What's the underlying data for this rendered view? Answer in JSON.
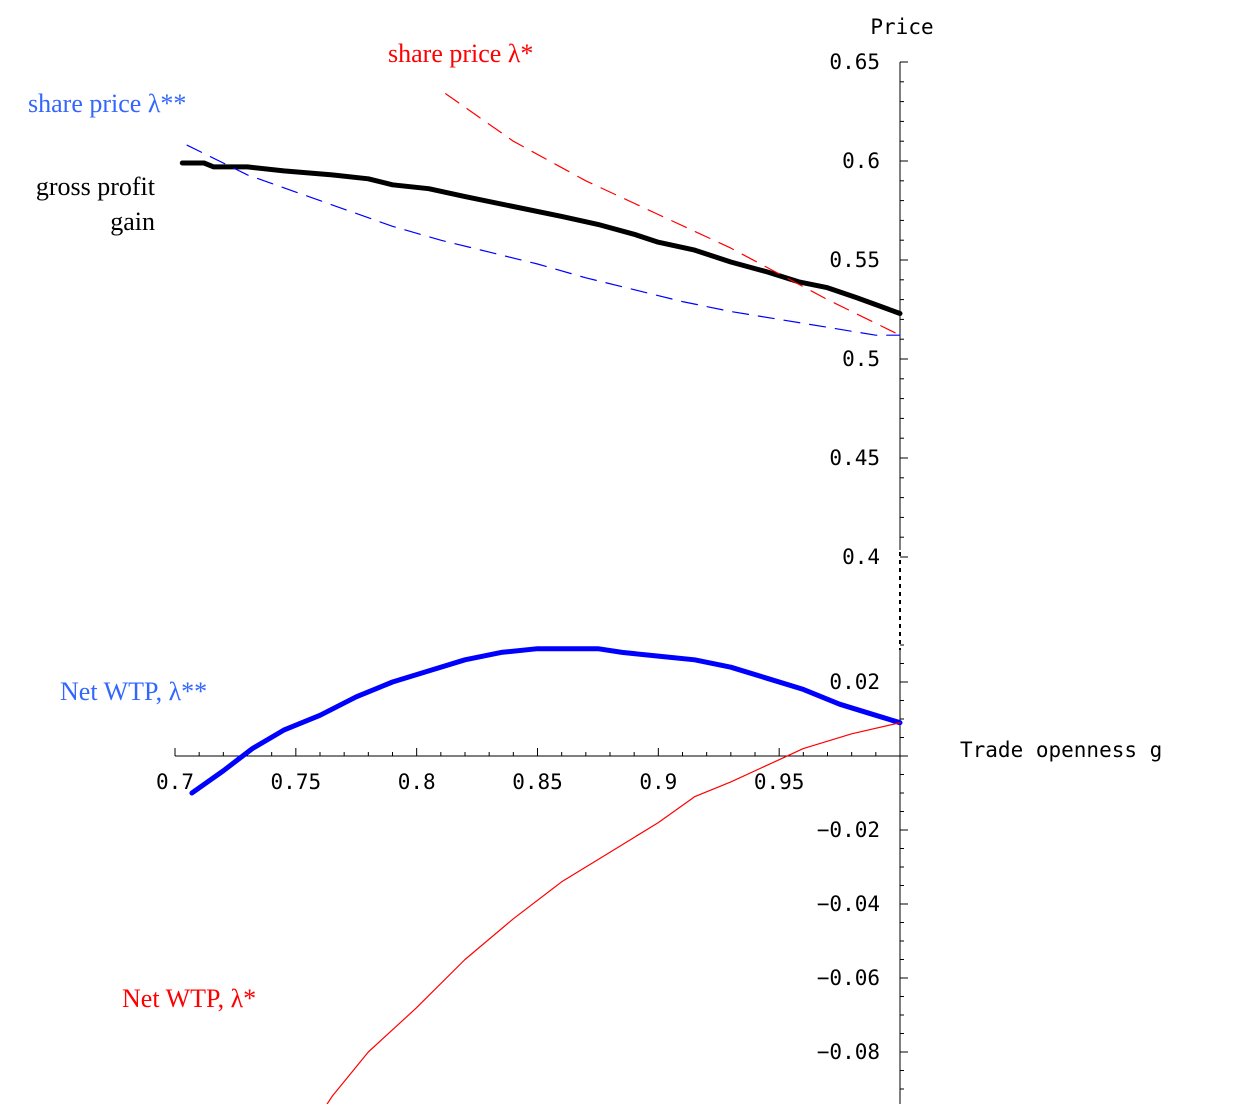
{
  "chart_data": {
    "type": "line",
    "xlabel": "Trade openness g",
    "ylabel": "Price",
    "xlim": [
      0.7,
      1.0
    ],
    "upper_panel": {
      "ylim": [
        0.4,
        0.65
      ],
      "ticks": [
        {
          "value": 0.65,
          "label": "0.65"
        },
        {
          "value": 0.6,
          "label": "0.6"
        },
        {
          "value": 0.55,
          "label": "0.55"
        },
        {
          "value": 0.5,
          "label": "0.5"
        },
        {
          "value": 0.45,
          "label": "0.45"
        },
        {
          "value": 0.4,
          "label": "0.4"
        }
      ]
    },
    "lower_panel": {
      "ylim": [
        -0.1,
        0.03
      ],
      "ticks": [
        {
          "value": 0.02,
          "label": "0.02"
        },
        {
          "value": -0.02,
          "label": "−0.02"
        },
        {
          "value": -0.04,
          "label": "−0.04"
        },
        {
          "value": -0.06,
          "label": "−0.06"
        },
        {
          "value": -0.08,
          "label": "−0.08"
        }
      ]
    },
    "x_ticks": [
      {
        "value": 0.7,
        "label": "0.7"
      },
      {
        "value": 0.75,
        "label": "0.75"
      },
      {
        "value": 0.8,
        "label": "0.8"
      },
      {
        "value": 0.85,
        "label": "0.85"
      },
      {
        "value": 0.9,
        "label": "0.9"
      },
      {
        "value": 0.95,
        "label": "0.95"
      }
    ],
    "series": [
      {
        "key": "gross_profit",
        "label_lines": [
          "gross profit",
          "gain"
        ],
        "panel": "upper",
        "color": "#000000",
        "style": "solid-thick",
        "points": [
          [
            0.703,
            0.599
          ],
          [
            0.712,
            0.599
          ],
          [
            0.716,
            0.597
          ],
          [
            0.73,
            0.597
          ],
          [
            0.745,
            0.595
          ],
          [
            0.765,
            0.593
          ],
          [
            0.78,
            0.591
          ],
          [
            0.79,
            0.588
          ],
          [
            0.805,
            0.586
          ],
          [
            0.82,
            0.582
          ],
          [
            0.84,
            0.577
          ],
          [
            0.86,
            0.572
          ],
          [
            0.875,
            0.568
          ],
          [
            0.89,
            0.563
          ],
          [
            0.9,
            0.559
          ],
          [
            0.915,
            0.555
          ],
          [
            0.93,
            0.549
          ],
          [
            0.945,
            0.544
          ],
          [
            0.958,
            0.539
          ],
          [
            0.97,
            0.536
          ],
          [
            0.982,
            0.531
          ],
          [
            1.0,
            0.523
          ]
        ]
      },
      {
        "key": "share_price_lambda_star",
        "label": "share price λ*",
        "panel": "upper",
        "color": "#ff0000",
        "style": "dashed-thin",
        "points": [
          [
            0.812,
            0.634
          ],
          [
            0.84,
            0.61
          ],
          [
            0.87,
            0.59
          ],
          [
            0.9,
            0.573
          ],
          [
            0.93,
            0.556
          ],
          [
            0.95,
            0.543
          ],
          [
            0.97,
            0.53
          ],
          [
            0.985,
            0.521
          ],
          [
            1.0,
            0.512
          ]
        ]
      },
      {
        "key": "share_price_lambda_star_star",
        "label": "share price λ**",
        "panel": "upper",
        "color": "#0000ff",
        "style": "dashed-thin",
        "points": [
          [
            0.705,
            0.608
          ],
          [
            0.73,
            0.593
          ],
          [
            0.76,
            0.58
          ],
          [
            0.79,
            0.567
          ],
          [
            0.81,
            0.56
          ],
          [
            0.83,
            0.554
          ],
          [
            0.85,
            0.548
          ],
          [
            0.87,
            0.541
          ],
          [
            0.89,
            0.535
          ],
          [
            0.91,
            0.529
          ],
          [
            0.93,
            0.524
          ],
          [
            0.95,
            0.52
          ],
          [
            0.97,
            0.516
          ],
          [
            0.99,
            0.512
          ],
          [
            1.0,
            0.512
          ]
        ]
      },
      {
        "key": "net_wtp_lambda_star_star",
        "label": "Net WTP,  λ**",
        "panel": "lower",
        "color": "#0000ff",
        "style": "solid-thick",
        "points": [
          [
            0.707,
            -0.01
          ],
          [
            0.72,
            -0.004
          ],
          [
            0.732,
            0.002
          ],
          [
            0.745,
            0.007
          ],
          [
            0.76,
            0.011
          ],
          [
            0.775,
            0.016
          ],
          [
            0.79,
            0.02
          ],
          [
            0.805,
            0.023
          ],
          [
            0.82,
            0.026
          ],
          [
            0.835,
            0.028
          ],
          [
            0.85,
            0.029
          ],
          [
            0.86,
            0.029
          ],
          [
            0.875,
            0.029
          ],
          [
            0.885,
            0.028
          ],
          [
            0.9,
            0.027
          ],
          [
            0.915,
            0.026
          ],
          [
            0.93,
            0.024
          ],
          [
            0.945,
            0.021
          ],
          [
            0.96,
            0.018
          ],
          [
            0.975,
            0.014
          ],
          [
            0.99,
            0.011
          ],
          [
            1.0,
            0.009
          ]
        ]
      },
      {
        "key": "net_wtp_lambda_star",
        "label": "Net WTP,  λ*",
        "panel": "lower",
        "color": "#ff0000",
        "style": "solid-thin",
        "points": [
          [
            0.755,
            -0.102
          ],
          [
            0.765,
            -0.092
          ],
          [
            0.78,
            -0.08
          ],
          [
            0.8,
            -0.068
          ],
          [
            0.82,
            -0.055
          ],
          [
            0.84,
            -0.044
          ],
          [
            0.86,
            -0.034
          ],
          [
            0.88,
            -0.026
          ],
          [
            0.9,
            -0.018
          ],
          [
            0.915,
            -0.011
          ],
          [
            0.93,
            -0.007
          ],
          [
            0.95,
            -0.001
          ],
          [
            0.96,
            0.002
          ],
          [
            0.98,
            0.006
          ],
          [
            1.0,
            0.009
          ]
        ]
      }
    ]
  }
}
